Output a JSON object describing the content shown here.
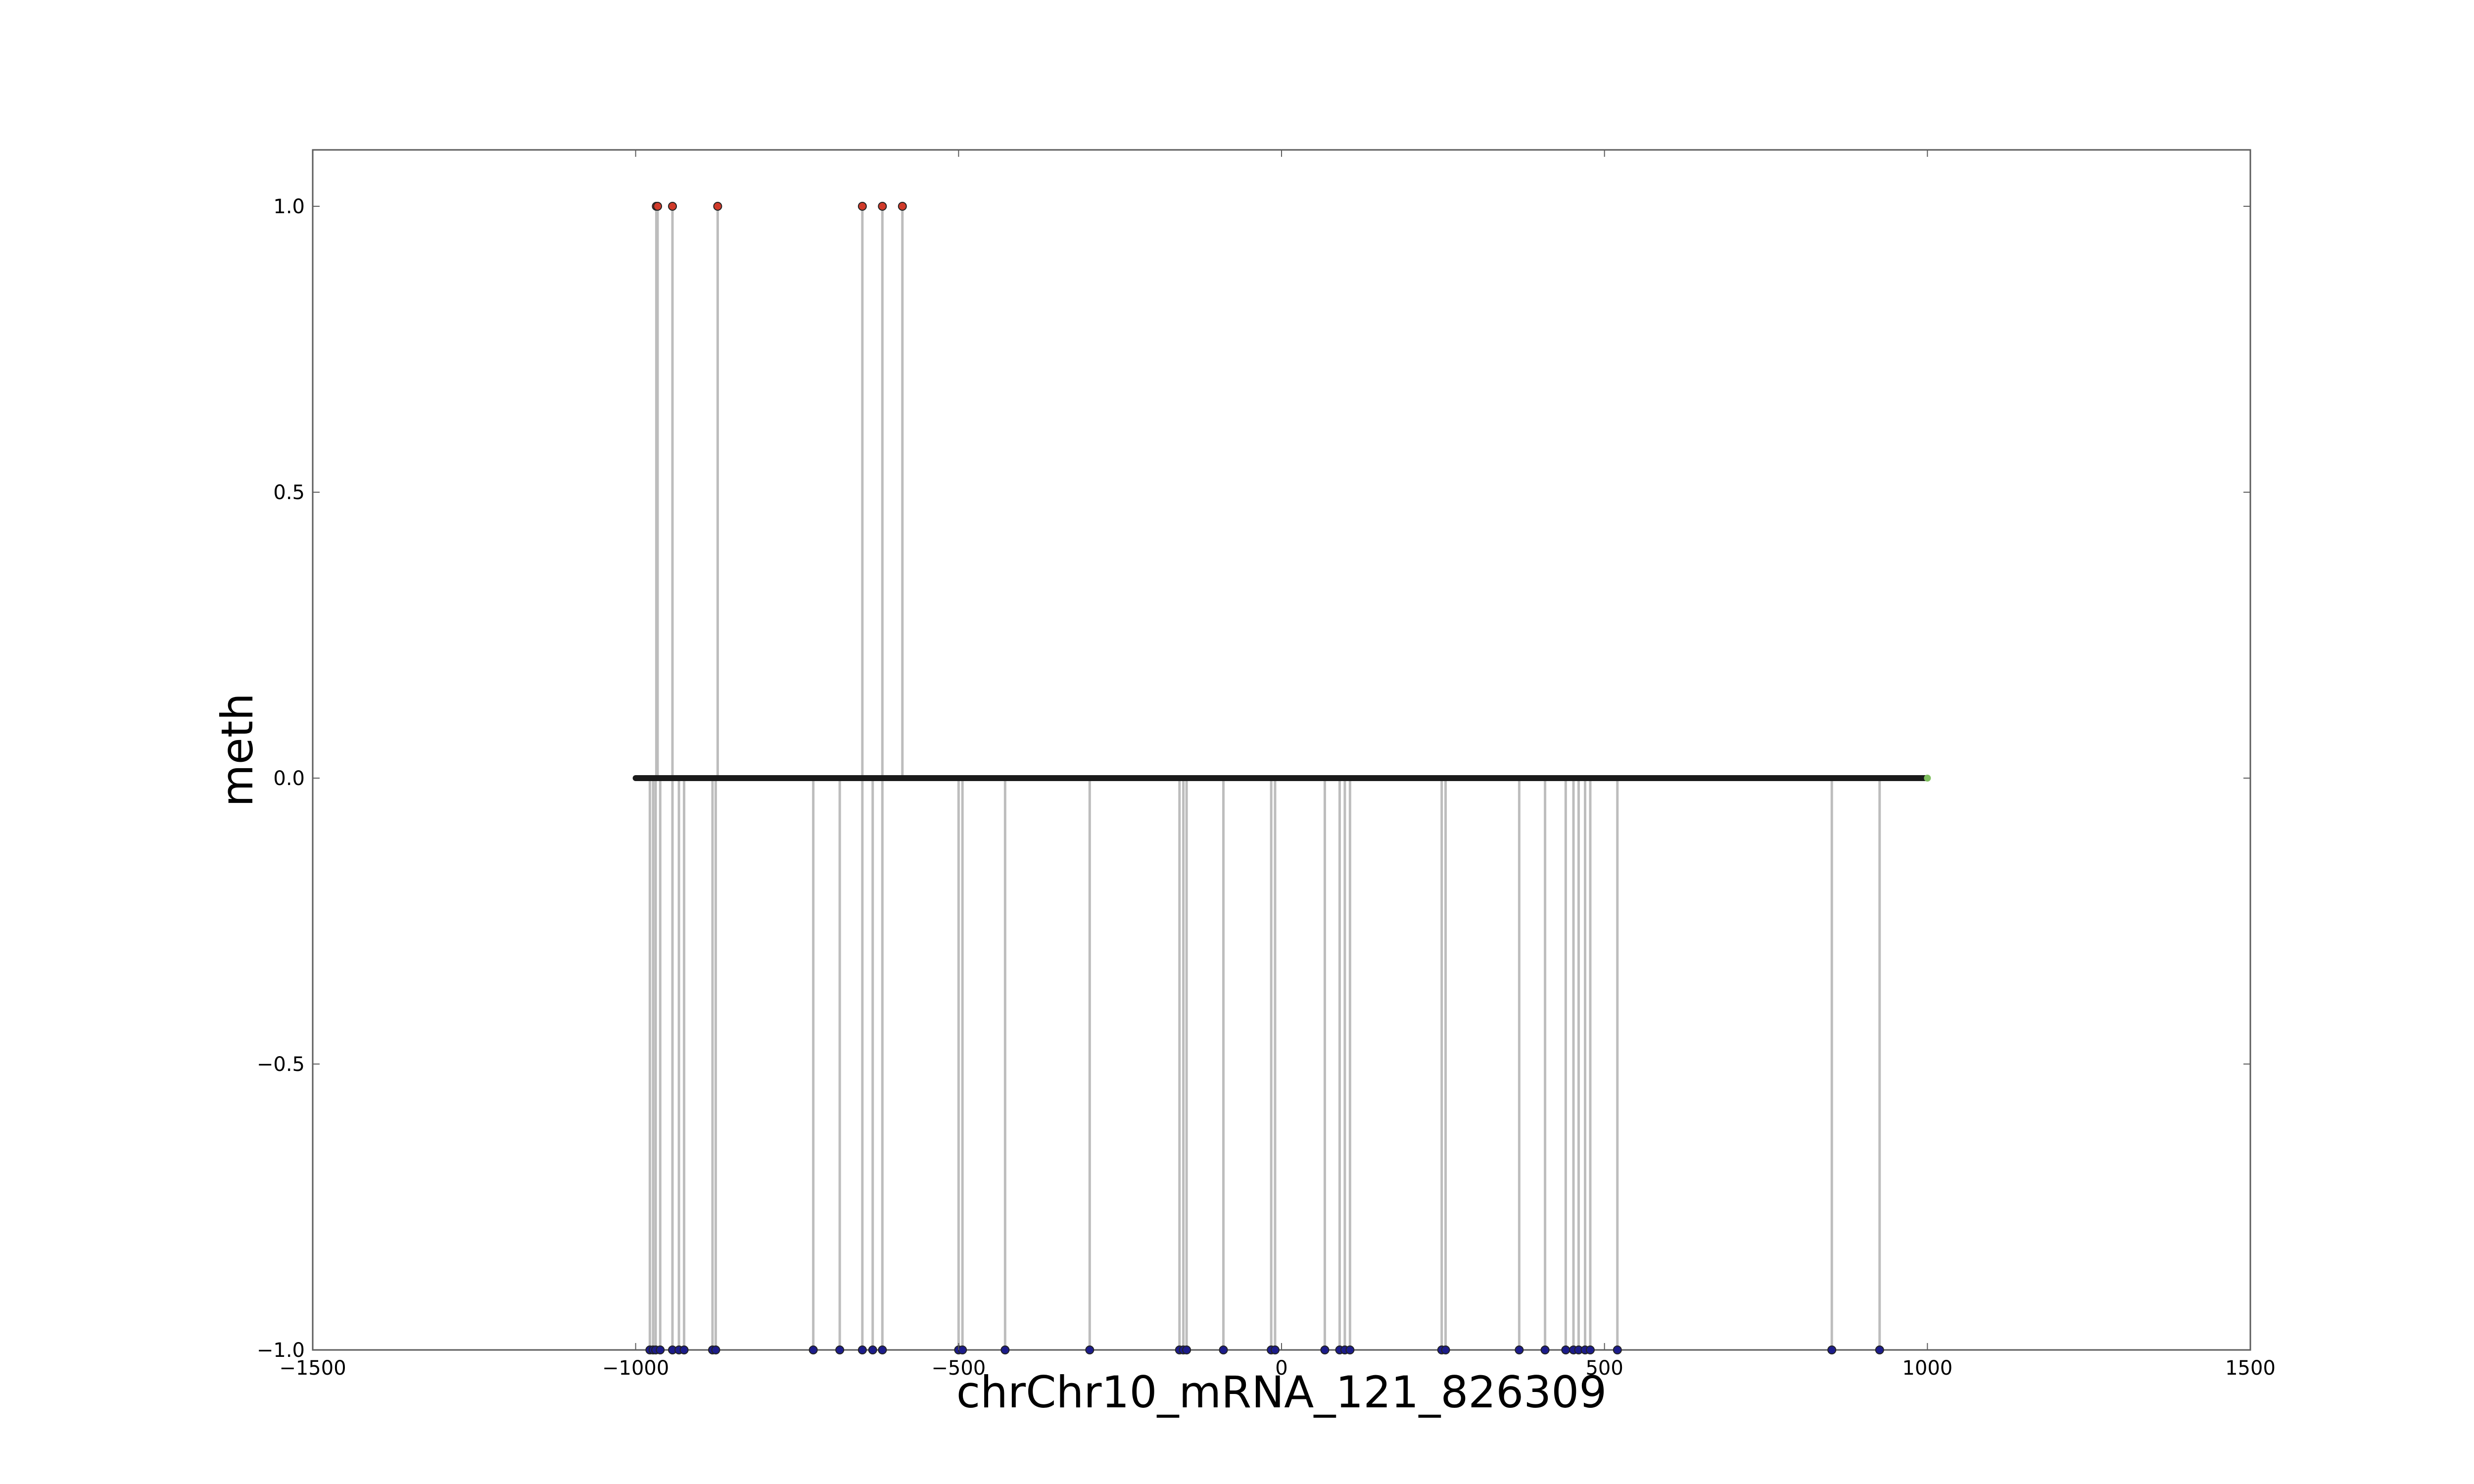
{
  "chart_data": {
    "type": "scatter",
    "title": "",
    "xlabel": "chrChr10_mRNA_121_826309",
    "ylabel": "meth",
    "xlim": [
      -1500,
      1500
    ],
    "ylim": [
      -1.0,
      1.0
    ],
    "xticks": [
      -1500,
      -1000,
      -500,
      0,
      500,
      1000,
      1500
    ],
    "xtick_labels": [
      "−1500",
      "−1000",
      "−500",
      "0",
      "500",
      "1000",
      "1500"
    ],
    "yticks": [
      -1.0,
      -0.5,
      0.0,
      0.5,
      1.0
    ],
    "ytick_labels": [
      "−1.0",
      "−0.5",
      "0.0",
      "0.5",
      "1.0"
    ],
    "grid": false,
    "baseline": {
      "y": 0.0,
      "x_start": -1000,
      "x_end": 1000
    },
    "series": [
      {
        "marker_color": "#d03a2a",
        "stem_color": "#bdbdbd",
        "x": [
          -968,
          -966,
          -943,
          -873,
          -649,
          -618,
          -587
        ],
        "y": [
          1,
          1,
          1,
          1,
          1,
          1,
          1
        ]
      },
      {
        "marker_color": "#1c1c8a",
        "stem_color": "#bdbdbd",
        "x": [
          -978,
          -973,
          -969,
          -962,
          -943,
          -933,
          -925,
          -881,
          -876,
          -725,
          -684,
          -649,
          -633,
          -618,
          -500,
          -494,
          -428,
          -297,
          -158,
          -152,
          -147,
          -90,
          -16,
          -10,
          67,
          90,
          98,
          106,
          248,
          254,
          368,
          408,
          440,
          452,
          460,
          470,
          478,
          520,
          852,
          926
        ],
        "y": [
          -1,
          -1,
          -1,
          -1,
          -1,
          -1,
          -1,
          -1,
          -1,
          -1,
          -1,
          -1,
          -1,
          -1,
          -1,
          -1,
          -1,
          -1,
          -1,
          -1,
          -1,
          -1,
          -1,
          -1,
          -1,
          -1,
          -1,
          -1,
          -1,
          -1,
          -1,
          -1,
          -1,
          -1,
          -1,
          -1,
          -1,
          -1,
          -1,
          -1
        ]
      }
    ]
  },
  "colors": {
    "axes": "#5c5c5c",
    "baseline": "#1a1a1a",
    "baseline_end_marker": "#7fbf5f"
  }
}
